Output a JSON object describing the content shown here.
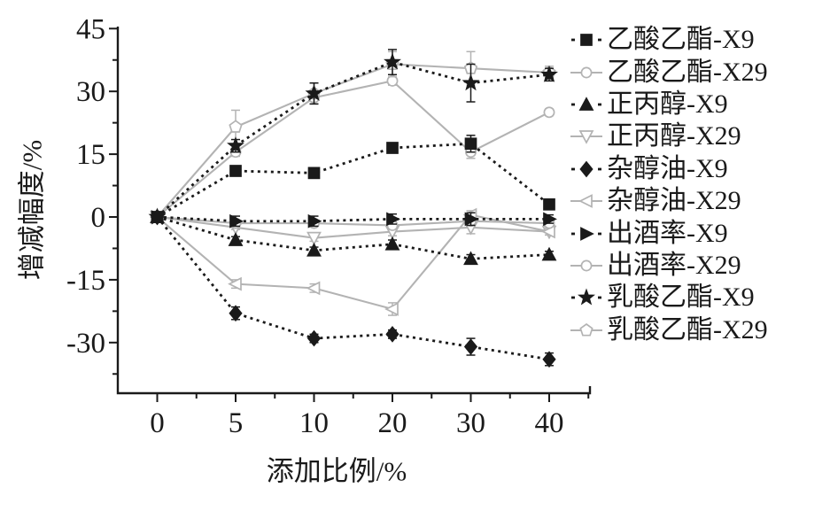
{
  "chart_data": {
    "type": "line",
    "title": "",
    "xlabel": "添加比例/%",
    "ylabel": "增减幅度/%",
    "x_categories": [
      "0",
      "5",
      "10",
      "20",
      "30",
      "40"
    ],
    "y_ticks": [
      45,
      30,
      15,
      0,
      -15,
      -30
    ],
    "y_minor_ticks": [
      37.5,
      22.5,
      7.5,
      -7.5,
      -22.5,
      -37.5
    ],
    "ylim": [
      -42,
      45.5
    ],
    "grid": false,
    "legend_position": "right",
    "colors": {
      "x9_black": "#1a1a1a",
      "x29_gray": "#b3b3b3"
    },
    "series": [
      {
        "name": "乙酸乙酯-X9",
        "marker": "square",
        "fill": "filled",
        "line": "dashed",
        "color": "#1a1a1a",
        "values": [
          0,
          11,
          10.5,
          16.5,
          17.5,
          3
        ],
        "errors": [
          0,
          1,
          0.8,
          1.2,
          2,
          0.8
        ]
      },
      {
        "name": "乙酸乙酯-X29",
        "marker": "circle",
        "fill": "open",
        "line": "solid",
        "color": "#b3b3b3",
        "values": [
          0,
          15.5,
          28.5,
          32.5,
          15.5,
          25
        ],
        "errors": [
          0,
          1,
          1.5,
          1,
          1.5,
          0.8
        ]
      },
      {
        "name": "正丙醇-X9",
        "marker": "triangle-up",
        "fill": "filled",
        "line": "dashed",
        "color": "#1a1a1a",
        "values": [
          0,
          -5.5,
          -8,
          -6.5,
          -10,
          -9
        ],
        "errors": [
          0,
          0.8,
          0.8,
          1,
          1,
          0.8
        ]
      },
      {
        "name": "正丙醇-X29",
        "marker": "triangle-down",
        "fill": "open",
        "line": "solid",
        "color": "#b3b3b3",
        "values": [
          0,
          -2.5,
          -5,
          -3.5,
          -2.5,
          -3.5
        ],
        "errors": [
          0,
          0.5,
          0.8,
          1,
          1.5,
          0.8
        ]
      },
      {
        "name": "杂醇油-X9",
        "marker": "diamond",
        "fill": "filled",
        "line": "dashed",
        "color": "#1a1a1a",
        "values": [
          0,
          -23,
          -29,
          -28,
          -31,
          -34
        ],
        "errors": [
          0,
          1.5,
          1,
          1,
          2,
          1.5
        ]
      },
      {
        "name": "杂醇油-X29",
        "marker": "triangle-left",
        "fill": "open",
        "line": "solid",
        "color": "#b3b3b3",
        "values": [
          0,
          -16,
          -17,
          -22,
          0.5,
          -3.5
        ],
        "errors": [
          0,
          1,
          1,
          1.5,
          1,
          0.8
        ]
      },
      {
        "name": "出酒率-X9",
        "marker": "triangle-right",
        "fill": "filled",
        "line": "dashed",
        "color": "#1a1a1a",
        "values": [
          0,
          -1,
          -1,
          -0.5,
          -0.5,
          -0.5
        ],
        "errors": [
          0,
          1.2,
          1.2,
          1.2,
          1.5,
          1
        ]
      },
      {
        "name": "出酒率-X29",
        "marker": "circle",
        "fill": "open",
        "line": "solid",
        "color": "#b3b3b3",
        "values": [
          0,
          -1.5,
          -1.5,
          -2,
          -1,
          -1.5
        ],
        "errors": [
          0,
          0.5,
          0.5,
          0.8,
          0.8,
          0.5
        ]
      },
      {
        "name": "乳酸乙酯-X9",
        "marker": "star",
        "fill": "filled",
        "line": "dashed",
        "color": "#1a1a1a",
        "values": [
          0,
          17,
          29.5,
          37,
          32,
          34
        ],
        "errors": [
          0,
          1.5,
          2.5,
          3,
          4.5,
          1.5
        ]
      },
      {
        "name": "乳酸乙酯-X29",
        "marker": "pentagon",
        "fill": "open",
        "line": "solid",
        "color": "#b3b3b3",
        "values": [
          0,
          21.5,
          29.5,
          36.5,
          35.5,
          34.5
        ],
        "errors": [
          0,
          4,
          2.5,
          3,
          4,
          1.5
        ]
      }
    ]
  }
}
